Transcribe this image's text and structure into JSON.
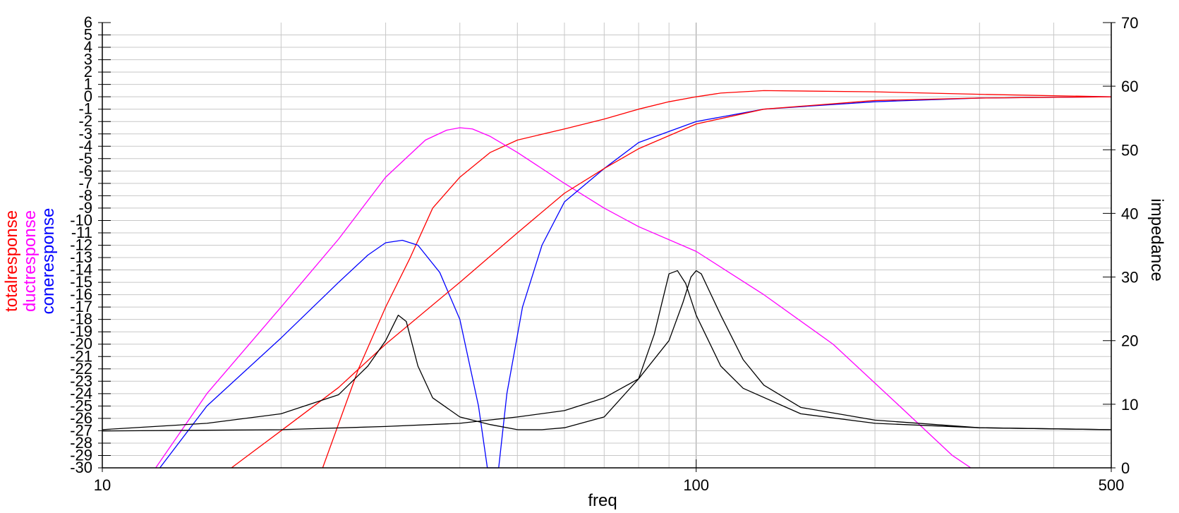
{
  "chart_data": {
    "type": "line",
    "x_scale": "log",
    "xlim": [
      10,
      500
    ],
    "ylim_left": [
      -30,
      6
    ],
    "ylim_right": [
      0,
      70
    ],
    "xlabel": "freq",
    "ylabel_right": "impedance",
    "ylabels_left": [
      {
        "text": "totalresponse",
        "color": "#ff0000"
      },
      {
        "text": "ductresponse",
        "color": "#ff00ff"
      },
      {
        "text": "coneresponse",
        "color": "#0000ff"
      }
    ],
    "x_tick_labels": [
      {
        "value": 10,
        "label": "10"
      },
      {
        "value": 100,
        "label": "100"
      },
      {
        "value": 500,
        "label": "500"
      }
    ],
    "y_left_ticks": [
      6,
      5,
      4,
      3,
      2,
      1,
      0,
      -1,
      -2,
      -3,
      -4,
      -5,
      -6,
      -7,
      -8,
      -9,
      -10,
      -11,
      -12,
      -13,
      -14,
      -15,
      -16,
      -17,
      -18,
      -19,
      -20,
      -21,
      -22,
      -23,
      -24,
      -25,
      -26,
      -27,
      -28,
      -29,
      -30
    ],
    "y_right_ticks": [
      70,
      60,
      50,
      40,
      30,
      20,
      10,
      0
    ],
    "grid": true,
    "series": [
      {
        "name": "totalresponse",
        "color": "#ff0000",
        "axis": "left",
        "points": [
          [
            23.5,
            -30
          ],
          [
            27,
            -22
          ],
          [
            30,
            -17
          ],
          [
            33,
            -13
          ],
          [
            36,
            -9
          ],
          [
            40,
            -6.5
          ],
          [
            45,
            -4.5
          ],
          [
            50,
            -3.5
          ],
          [
            60,
            -2.6
          ],
          [
            70,
            -1.8
          ],
          [
            80,
            -1.0
          ],
          [
            90,
            -0.4
          ],
          [
            100,
            0
          ],
          [
            110,
            0.3
          ],
          [
            130,
            0.5
          ],
          [
            200,
            0.4
          ],
          [
            300,
            0.2
          ],
          [
            500,
            0
          ]
        ]
      },
      {
        "name": "ductresponse",
        "color": "#ff00ff",
        "axis": "left",
        "points": [
          [
            12.3,
            -30
          ],
          [
            15,
            -24
          ],
          [
            20,
            -17
          ],
          [
            25,
            -11.5
          ],
          [
            30,
            -6.5
          ],
          [
            35,
            -3.5
          ],
          [
            38,
            -2.7
          ],
          [
            40,
            -2.5
          ],
          [
            42,
            -2.6
          ],
          [
            45,
            -3.2
          ],
          [
            50,
            -4.5
          ],
          [
            60,
            -7
          ],
          [
            70,
            -9
          ],
          [
            80,
            -10.5
          ],
          [
            100,
            -12.5
          ],
          [
            130,
            -16
          ],
          [
            170,
            -20
          ],
          [
            220,
            -25
          ],
          [
            270,
            -29
          ],
          [
            290,
            -30
          ]
        ]
      },
      {
        "name": "coneresponse",
        "color": "#0000ff",
        "axis": "left",
        "points": [
          [
            12.5,
            -30
          ],
          [
            15,
            -25
          ],
          [
            20,
            -19.5
          ],
          [
            25,
            -15
          ],
          [
            28,
            -12.8
          ],
          [
            30,
            -11.8
          ],
          [
            32,
            -11.6
          ],
          [
            34,
            -12.0
          ],
          [
            37,
            -14.2
          ],
          [
            40,
            -18
          ],
          [
            43,
            -25
          ],
          [
            44.5,
            -30
          ],
          [
            46.5,
            -30
          ],
          [
            48,
            -24
          ],
          [
            51,
            -17
          ],
          [
            55,
            -12
          ],
          [
            60,
            -8.5
          ],
          [
            70,
            -5.8
          ],
          [
            80,
            -3.7
          ],
          [
            100,
            -2.0
          ],
          [
            130,
            -1.0
          ],
          [
            200,
            -0.4
          ],
          [
            300,
            -0.1
          ],
          [
            500,
            0
          ]
        ]
      },
      {
        "name": "",
        "color": "#ff0000",
        "axis": "left",
        "points": [
          [
            16.5,
            -30
          ],
          [
            20,
            -27
          ],
          [
            25,
            -23.5
          ],
          [
            30,
            -20
          ],
          [
            40,
            -15
          ],
          [
            50,
            -11
          ],
          [
            60,
            -7.8
          ],
          [
            70,
            -5.8
          ],
          [
            80,
            -4.2
          ],
          [
            100,
            -2.2
          ],
          [
            130,
            -1.0
          ],
          [
            200,
            -0.3
          ],
          [
            300,
            -0.1
          ],
          [
            500,
            0
          ]
        ]
      },
      {
        "name": "",
        "color": "#000000",
        "axis": "right",
        "points": [
          [
            10,
            6
          ],
          [
            15,
            7
          ],
          [
            20,
            8.5
          ],
          [
            25,
            11.5
          ],
          [
            28,
            16
          ],
          [
            30,
            20
          ],
          [
            31.5,
            24
          ],
          [
            32.5,
            23
          ],
          [
            34,
            16
          ],
          [
            36,
            11
          ],
          [
            40,
            8
          ],
          [
            45,
            6.8
          ],
          [
            50,
            6
          ],
          [
            55,
            6
          ],
          [
            60,
            6.3
          ],
          [
            70,
            8
          ],
          [
            80,
            14
          ],
          [
            85,
            21
          ],
          [
            90,
            30.5
          ],
          [
            93,
            31
          ],
          [
            96,
            29
          ],
          [
            100,
            24
          ],
          [
            110,
            16
          ],
          [
            120,
            12.5
          ],
          [
            150,
            8.5
          ],
          [
            200,
            7
          ],
          [
            300,
            6.3
          ],
          [
            500,
            6
          ]
        ]
      },
      {
        "name": "",
        "color": "#000000",
        "axis": "right",
        "points": [
          [
            10,
            5.8
          ],
          [
            20,
            6
          ],
          [
            30,
            6.5
          ],
          [
            40,
            7
          ],
          [
            50,
            8
          ],
          [
            60,
            9
          ],
          [
            70,
            11
          ],
          [
            80,
            14
          ],
          [
            90,
            20
          ],
          [
            95,
            26
          ],
          [
            98,
            30
          ],
          [
            100,
            31
          ],
          [
            102,
            30.5
          ],
          [
            105,
            28
          ],
          [
            110,
            24
          ],
          [
            120,
            17
          ],
          [
            130,
            13
          ],
          [
            150,
            9.5
          ],
          [
            200,
            7.5
          ],
          [
            300,
            6.3
          ],
          [
            500,
            6
          ]
        ]
      }
    ]
  }
}
